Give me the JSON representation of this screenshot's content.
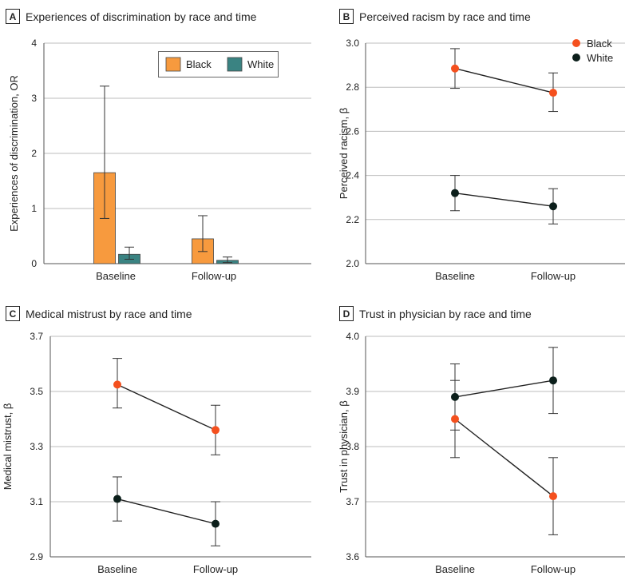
{
  "colors": {
    "black_race": "#f4501e",
    "white_race": "#0c1f1b",
    "bar_black": "#f79a3e",
    "bar_white": "#3a8382",
    "grid": "#bdbdbd",
    "axis": "#555555"
  },
  "chart_data": [
    {
      "panel": "A",
      "type": "bar",
      "title": "Experiences of discrimination by race and time",
      "ylabel": "Experiences of discrimination, OR",
      "xlabel": "",
      "categories": [
        "Baseline",
        "Follow-up"
      ],
      "ylim": [
        0,
        4
      ],
      "yticks": [
        "0",
        "1",
        "2",
        "3",
        "4"
      ],
      "legend_position": "top-right",
      "series": [
        {
          "name": "Black",
          "values": [
            1.65,
            0.45
          ],
          "lower": [
            0.82,
            0.22
          ],
          "upper": [
            3.22,
            0.87
          ]
        },
        {
          "name": "White",
          "values": [
            0.17,
            0.06
          ],
          "lower": [
            0.08,
            0.02
          ],
          "upper": [
            0.3,
            0.12
          ]
        }
      ]
    },
    {
      "panel": "B",
      "type": "line",
      "title": "Perceived racism by race and time",
      "ylabel": "Perceived racism, β",
      "xlabel": "",
      "categories": [
        "Baseline",
        "Follow-up"
      ],
      "ylim": [
        2.0,
        3.0
      ],
      "yticks": [
        "2.0",
        "2.2",
        "2.4",
        "2.6",
        "2.8",
        "3.0"
      ],
      "legend_position": "top-right",
      "series": [
        {
          "name": "Black",
          "values": [
            2.885,
            2.775
          ],
          "lower": [
            2.795,
            2.69
          ],
          "upper": [
            2.975,
            2.865
          ]
        },
        {
          "name": "White",
          "values": [
            2.32,
            2.26
          ],
          "lower": [
            2.24,
            2.18
          ],
          "upper": [
            2.4,
            2.34
          ]
        }
      ]
    },
    {
      "panel": "C",
      "type": "line",
      "title": "Medical mistrust by race and time",
      "ylabel": "Medical mistrust, β",
      "xlabel": "",
      "categories": [
        "Baseline",
        "Follow-up"
      ],
      "ylim": [
        2.9,
        3.7
      ],
      "yticks": [
        "2.9",
        "3.1",
        "3.3",
        "3.5",
        "3.7"
      ],
      "series": [
        {
          "name": "Black",
          "values": [
            3.525,
            3.36
          ],
          "lower": [
            3.44,
            3.27
          ],
          "upper": [
            3.62,
            3.45
          ]
        },
        {
          "name": "White",
          "values": [
            3.11,
            3.02
          ],
          "lower": [
            3.03,
            2.94
          ],
          "upper": [
            3.19,
            3.1
          ]
        }
      ]
    },
    {
      "panel": "D",
      "type": "line",
      "title": "Trust in physician by race and time",
      "ylabel": "Trust in physician, β",
      "xlabel": "",
      "categories": [
        "Baseline",
        "Follow-up"
      ],
      "ylim": [
        3.6,
        4.0
      ],
      "yticks": [
        "3.6",
        "3.7",
        "3.8",
        "3.9",
        "4.0"
      ],
      "series": [
        {
          "name": "Black",
          "values": [
            3.85,
            3.71
          ],
          "lower": [
            3.78,
            3.64
          ],
          "upper": [
            3.92,
            3.78
          ]
        },
        {
          "name": "White",
          "values": [
            3.89,
            3.92
          ],
          "lower": [
            3.83,
            3.86
          ],
          "upper": [
            3.95,
            3.98
          ]
        }
      ]
    }
  ]
}
